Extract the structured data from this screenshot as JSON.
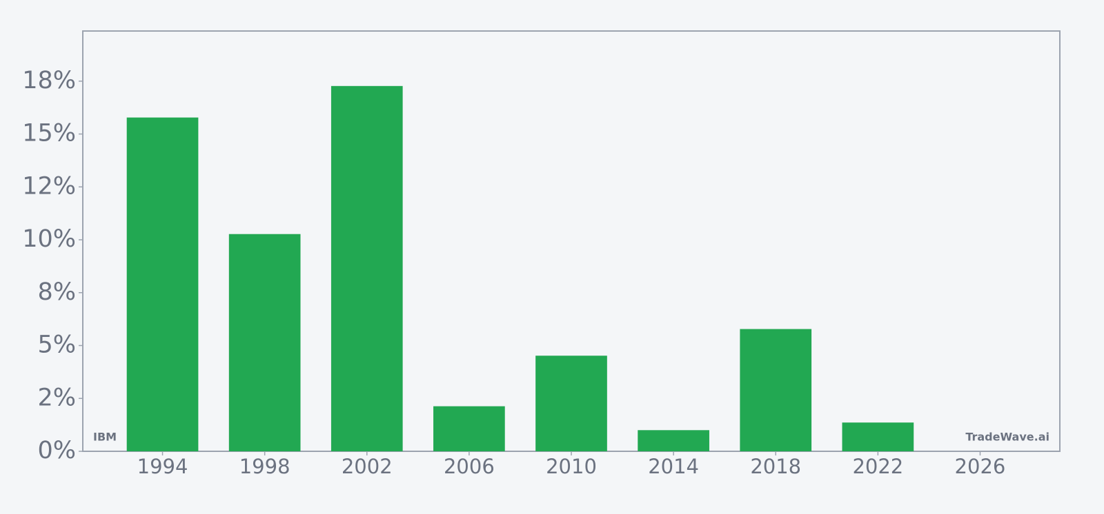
{
  "chart_data": {
    "type": "bar",
    "x": [
      1994,
      1998,
      2002,
      2006,
      2010,
      2014,
      2018,
      2022
    ],
    "values": [
      15.78,
      10.27,
      17.27,
      2.13,
      4.52,
      1.0,
      5.78,
      1.36
    ],
    "color": "#22a852",
    "xlim": [
      1990.88,
      2029.12
    ],
    "xticks": [
      1994,
      1998,
      2002,
      2006,
      2010,
      2014,
      2018,
      2022,
      2026
    ],
    "ylim": [
      0,
      19.87
    ],
    "yticks": [
      {
        "value": 0,
        "label": "0%"
      },
      {
        "value": 2.5,
        "label": "2%"
      },
      {
        "value": 5,
        "label": "5%"
      },
      {
        "value": 7.5,
        "label": "8%"
      },
      {
        "value": 10,
        "label": "10%"
      },
      {
        "value": 12.5,
        "label": "12%"
      },
      {
        "value": 15,
        "label": "15%"
      },
      {
        "value": 17.5,
        "label": "18%"
      }
    ],
    "annotations": [
      "IBM",
      "TradeWave.ai"
    ]
  }
}
